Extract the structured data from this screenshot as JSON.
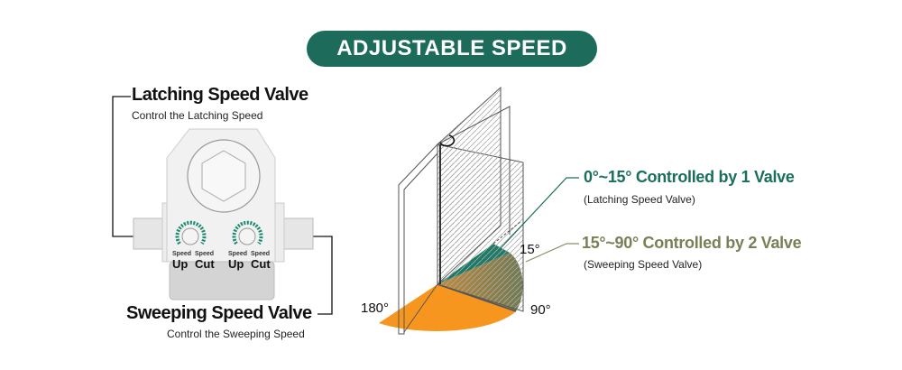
{
  "title": "ADJUSTABLE SPEED",
  "left": {
    "latching": {
      "title": "Latching Speed Valve",
      "subtitle": "Control the Latching Speed"
    },
    "sweeping": {
      "title": "Sweeping Speed Valve",
      "subtitle": "Control the Sweeping Speed"
    },
    "valve_labels": {
      "speed": "Speed",
      "up": "Up",
      "cut": "Cut"
    }
  },
  "right": {
    "range1": {
      "title": "0°~15° Controlled by 1 Valve",
      "subtitle": "(Latching Speed Valve)"
    },
    "range2": {
      "title": "15°~90° Controlled by 2 Valve",
      "subtitle": "(Sweeping Speed Valve)"
    },
    "angles": {
      "a15": "15°",
      "a90": "90°",
      "a180": "180°"
    }
  },
  "colors": {
    "brand_green": "#1d6b5a",
    "teal": "#1a6e5e",
    "olive": "#7a7f56",
    "orange": "#f7961e"
  }
}
